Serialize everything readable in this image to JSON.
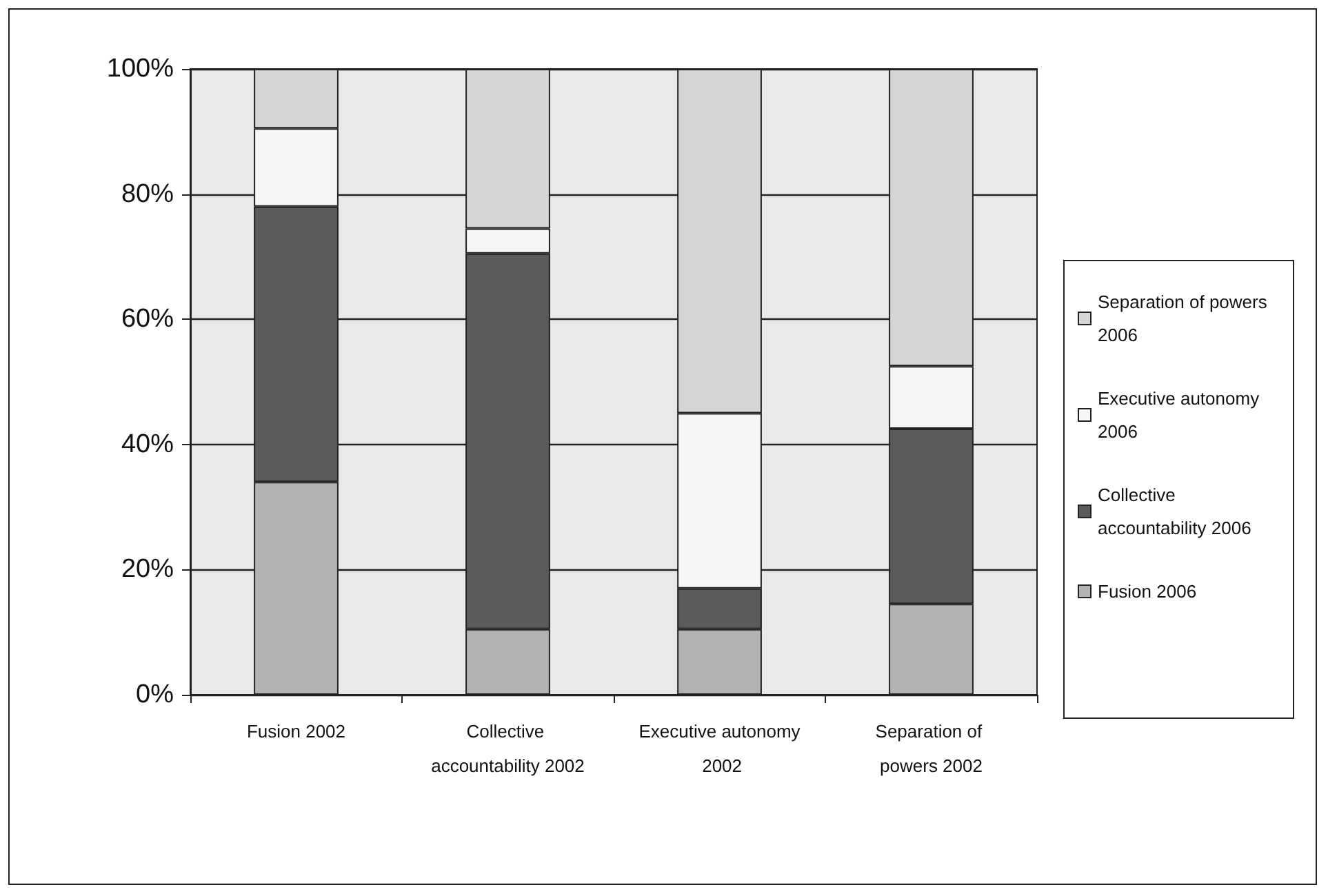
{
  "chart_data": {
    "type": "bar",
    "stacked": true,
    "categories": [
      "Fusion 2002",
      "Collective accountability 2002",
      "Executive autonomy 2002",
      "Separation of powers 2002"
    ],
    "series": [
      {
        "name": "Fusion 2006",
        "color": "#b1b2b4",
        "values": [
          34,
          10.5,
          10.5,
          14.5
        ]
      },
      {
        "name": "Collective accountability 2006",
        "color": "#5a5a5c",
        "values": [
          44,
          60,
          6.5,
          28
        ]
      },
      {
        "name": "Executive autonomy 2006",
        "color": "#f6f6f6",
        "values": [
          12.5,
          4,
          28,
          10
        ]
      },
      {
        "name": "Separation of powers 2006",
        "color": "#d4d5d7",
        "values": [
          9.5,
          25.5,
          55,
          47.5
        ]
      }
    ],
    "ylim": [
      0,
      100
    ],
    "yticks": [
      {
        "value": 0,
        "label": "0%"
      },
      {
        "value": 20,
        "label": "20%"
      },
      {
        "value": 40,
        "label": "40%"
      },
      {
        "value": 60,
        "label": "60%"
      },
      {
        "value": 80,
        "label": "80%"
      },
      {
        "value": 100,
        "label": "100%"
      }
    ],
    "grid": "y",
    "legend": "right"
  }
}
